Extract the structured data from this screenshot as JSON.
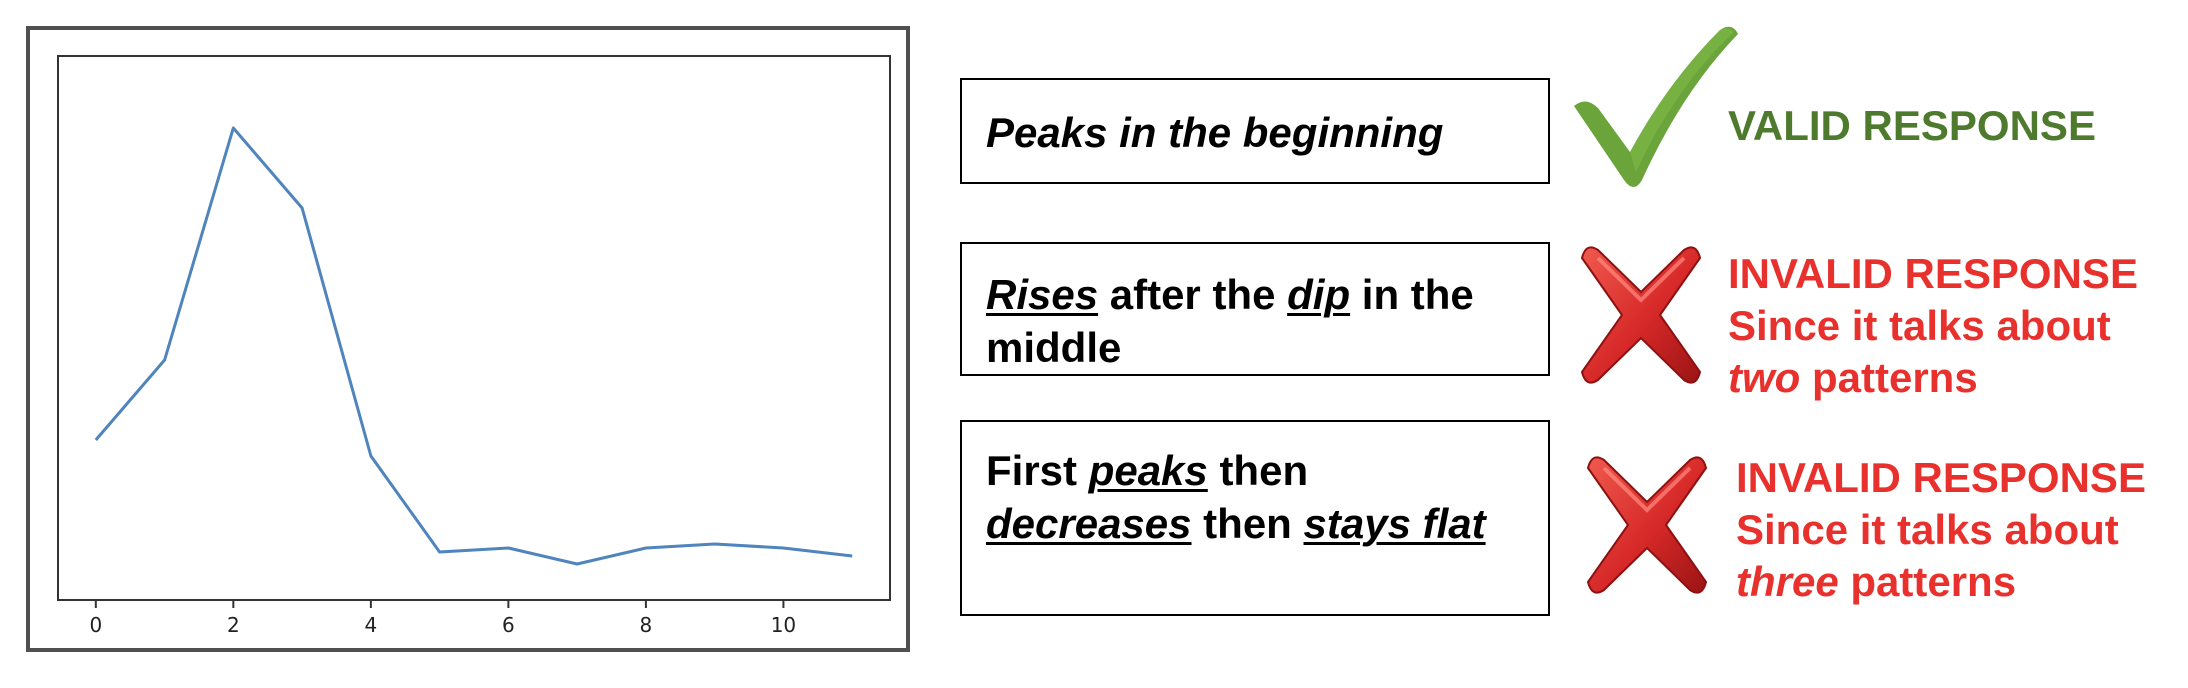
{
  "chart_data": {
    "type": "line",
    "x": [
      0,
      1,
      2,
      3,
      4,
      5,
      6,
      7,
      8,
      9,
      10,
      11
    ],
    "series": [
      {
        "values": [
          0.2,
          0.3,
          0.59,
          0.49,
          0.18,
          0.06,
          0.065,
          0.045,
          0.065,
          0.07,
          0.065,
          0.055
        ],
        "color": "#4f84bd"
      }
    ],
    "xticks": [
      "0",
      "2",
      "4",
      "6",
      "8",
      "10"
    ],
    "xtick_values": [
      0,
      2,
      4,
      6,
      8,
      10
    ],
    "xlim": [
      -0.55,
      11.55
    ],
    "ylim": [
      0,
      0.68
    ],
    "yticks_shown": false,
    "grid": false,
    "title": "",
    "xlabel": "",
    "ylabel": ""
  },
  "responses": [
    {
      "segments": [
        {
          "t": "Peaks in the beginning",
          "italic": true,
          "underline": false
        }
      ]
    },
    {
      "segments": [
        {
          "t": "Rises",
          "italic": true,
          "underline": true
        },
        {
          "t": " after the ",
          "italic": false,
          "underline": false
        },
        {
          "t": "dip",
          "italic": true,
          "underline": true
        },
        {
          "t": " in the",
          "italic": false,
          "underline": false
        },
        {
          "br": true
        },
        {
          "t": "middle",
          "italic": false,
          "underline": false
        }
      ]
    },
    {
      "segments": [
        {
          "t": "First ",
          "italic": false,
          "underline": false
        },
        {
          "t": "peaks",
          "italic": true,
          "underline": true
        },
        {
          "t": " then",
          "italic": false,
          "underline": false
        },
        {
          "br": true
        },
        {
          "t": "decreases",
          "italic": true,
          "underline": true
        },
        {
          "t": " then ",
          "italic": false,
          "underline": false
        },
        {
          "t": "stays flat",
          "italic": true,
          "underline": true
        }
      ]
    }
  ],
  "verdicts": {
    "v1": {
      "line1": "VALID RESPONSE",
      "color": "#4e7a2d"
    },
    "v2": {
      "line1": "INVALID RESPONSE",
      "line2": "Since it talks about",
      "line3_em": "two",
      "line3_rest": " patterns",
      "color": "#e8312d"
    },
    "v3": {
      "line1": "INVALID RESPONSE",
      "line2": "Since it talks about",
      "line3_em": "three",
      "line3_rest": " patterns",
      "color": "#e8312d"
    }
  },
  "icons": {
    "valid": "check-icon",
    "invalid": "cross-icon",
    "check_color": "#6aa43a",
    "cross_color": "#d62828"
  }
}
